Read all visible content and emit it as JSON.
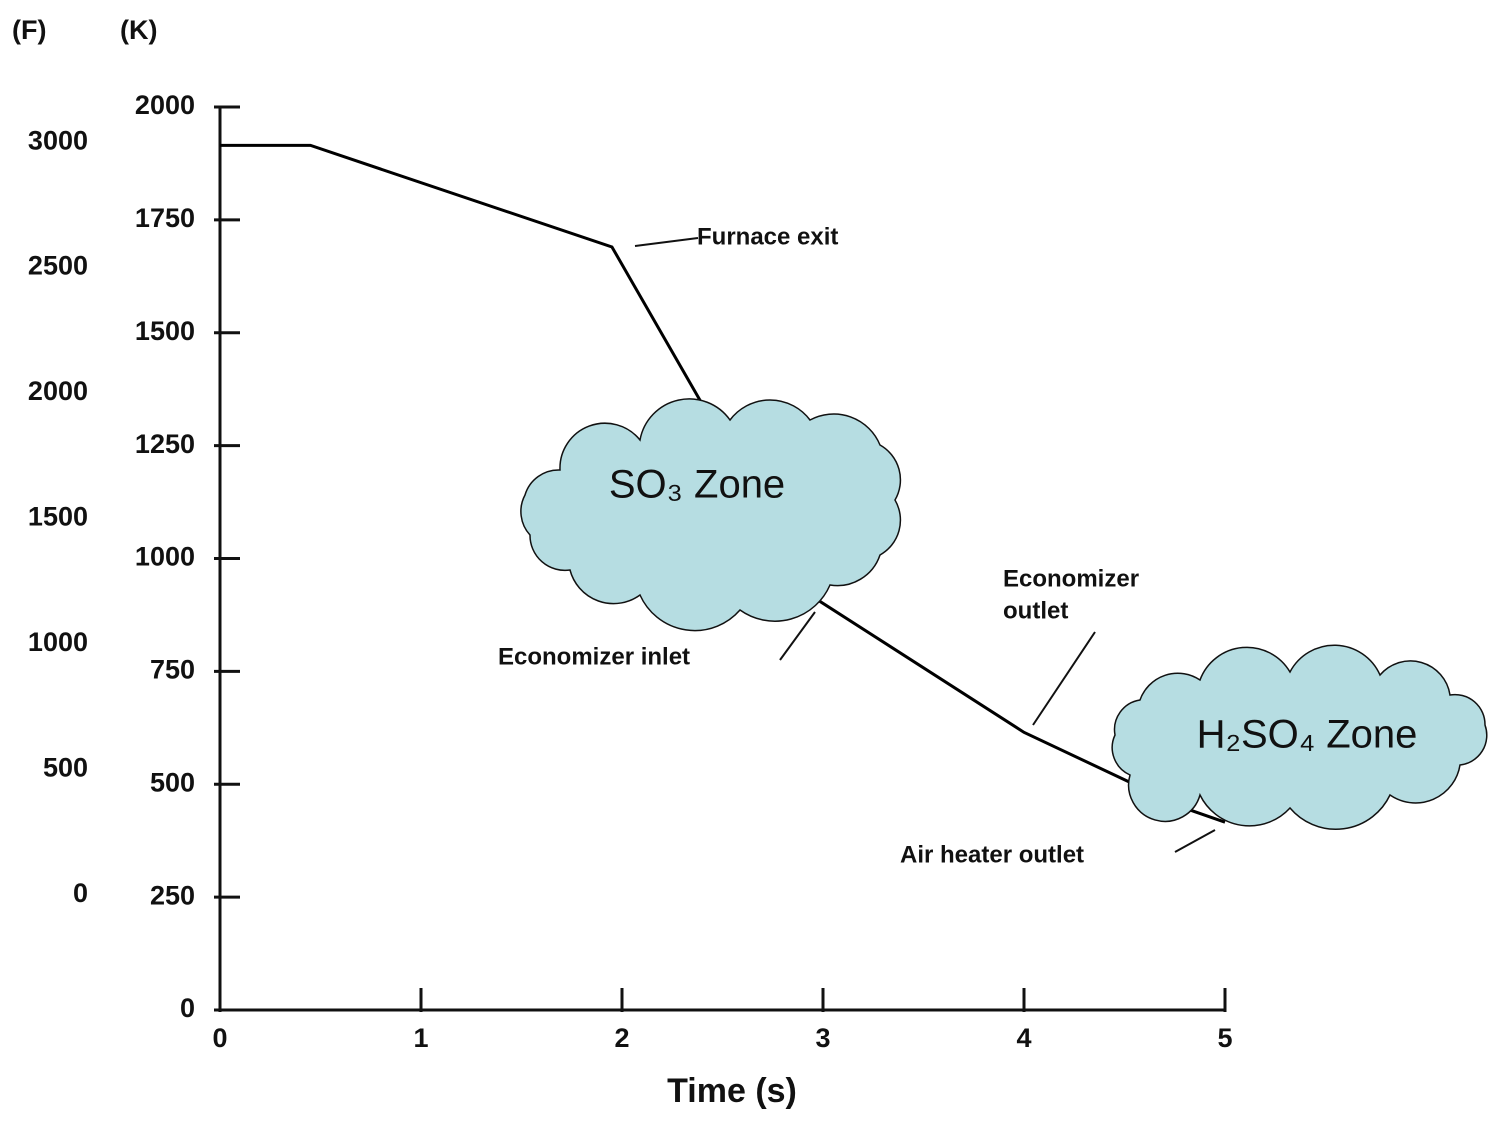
{
  "chart_data": {
    "type": "line",
    "x_axis_label": "Time (s)",
    "y_axis_label": "(K)",
    "y2_axis_label": "(F)",
    "x": [
      0,
      0.45,
      1.95,
      2.95,
      4.0,
      4.8,
      5.0
    ],
    "values": [
      1915,
      1915,
      1690,
      915,
      615,
      447,
      416
    ],
    "color": "#000000",
    "xlim": [
      0,
      5
    ],
    "xticks": [
      0,
      1,
      2,
      3,
      4,
      5
    ],
    "ylim": [
      0,
      2000
    ],
    "yticks": [
      0,
      250,
      500,
      750,
      1000,
      1250,
      1500,
      1750,
      2000
    ],
    "y2lim": [
      -459.67,
      3140.33
    ],
    "y2ticks": [
      0,
      500,
      1000,
      1500,
      2000,
      2500,
      3000
    ],
    "annotations": [
      "Furnace exit",
      "Economizer inlet",
      [
        "Economizer",
        "outlet"
      ],
      "Air heater outlet"
    ],
    "zones": [
      "SO₃ Zone",
      "H₂SO₄ Zone"
    ]
  }
}
